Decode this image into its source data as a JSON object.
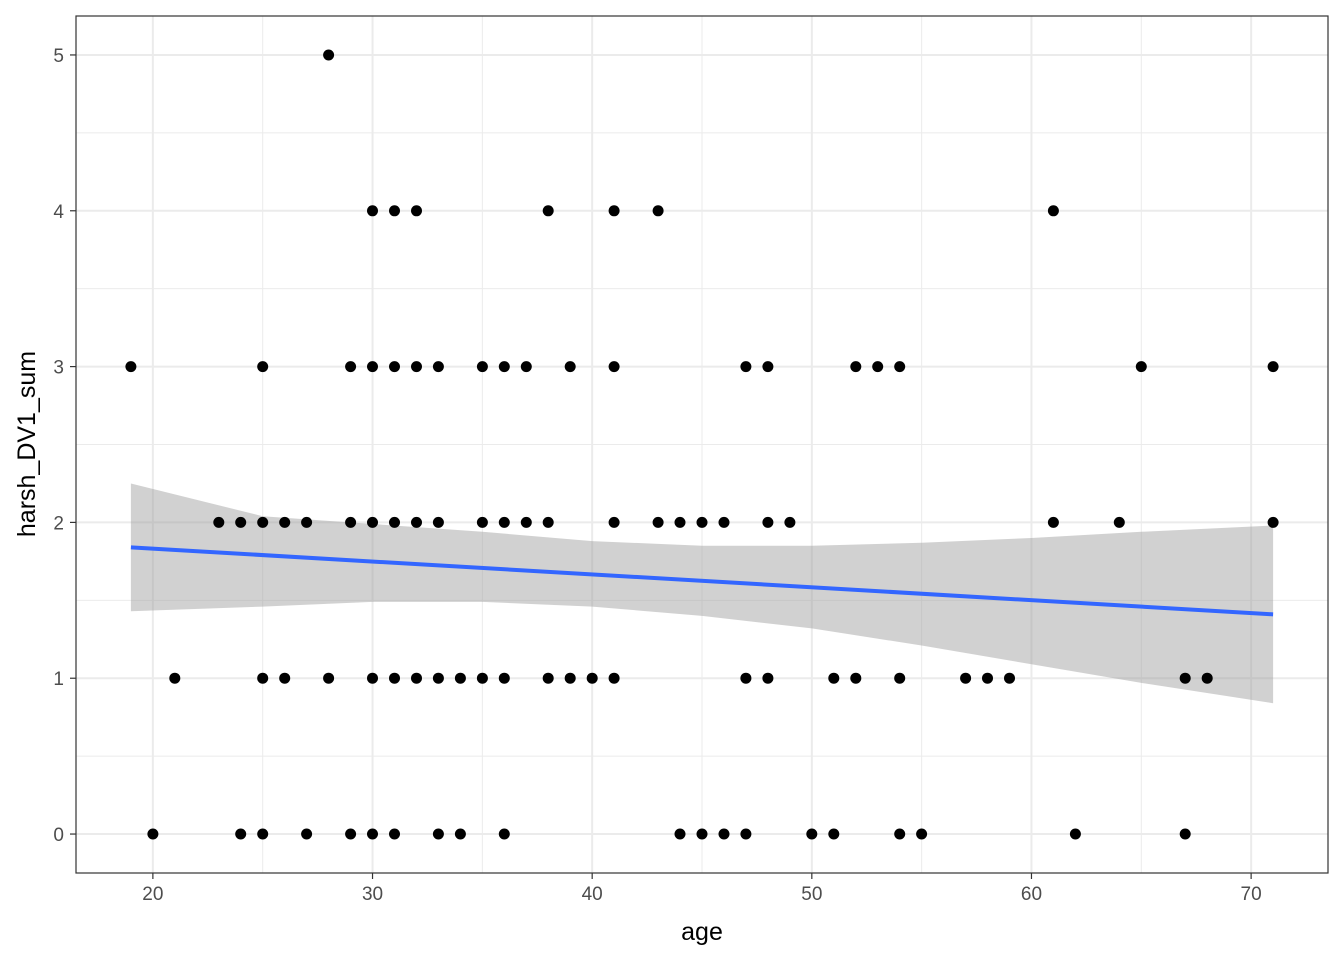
{
  "chart_data": {
    "type": "scatter",
    "xlabel": "age",
    "ylabel": "harsh_DV1_sum",
    "xlim": [
      16.5,
      73.5
    ],
    "ylim": [
      -0.25,
      5.25
    ],
    "x_ticks": [
      20,
      30,
      40,
      50,
      60,
      70
    ],
    "y_ticks": [
      0,
      1,
      2,
      3,
      4,
      5
    ],
    "x_tick_labels": [
      "20",
      "30",
      "40",
      "50",
      "60",
      "70"
    ],
    "y_tick_labels": [
      "0",
      "1",
      "2",
      "3",
      "4",
      "5"
    ],
    "grid": true,
    "colors": {
      "points": "#000000",
      "fit_line": "#3366ff",
      "confidence_band": "#999999",
      "grid": "#ebebeb",
      "panel_border": "#333333"
    },
    "points": [
      [
        28,
        5
      ],
      [
        30,
        4
      ],
      [
        31,
        4
      ],
      [
        32,
        4
      ],
      [
        38,
        4
      ],
      [
        41,
        4
      ],
      [
        43,
        4
      ],
      [
        61,
        4
      ],
      [
        19,
        3
      ],
      [
        25,
        3
      ],
      [
        29,
        3
      ],
      [
        30,
        3
      ],
      [
        31,
        3
      ],
      [
        32,
        3
      ],
      [
        33,
        3
      ],
      [
        35,
        3
      ],
      [
        36,
        3
      ],
      [
        37,
        3
      ],
      [
        39,
        3
      ],
      [
        41,
        3
      ],
      [
        47,
        3
      ],
      [
        48,
        3
      ],
      [
        52,
        3
      ],
      [
        53,
        3
      ],
      [
        54,
        3
      ],
      [
        65,
        3
      ],
      [
        71,
        3
      ],
      [
        23,
        2
      ],
      [
        24,
        2
      ],
      [
        25,
        2
      ],
      [
        26,
        2
      ],
      [
        27,
        2
      ],
      [
        29,
        2
      ],
      [
        30,
        2
      ],
      [
        31,
        2
      ],
      [
        32,
        2
      ],
      [
        33,
        2
      ],
      [
        35,
        2
      ],
      [
        36,
        2
      ],
      [
        37,
        2
      ],
      [
        38,
        2
      ],
      [
        41,
        2
      ],
      [
        43,
        2
      ],
      [
        44,
        2
      ],
      [
        45,
        2
      ],
      [
        46,
        2
      ],
      [
        48,
        2
      ],
      [
        49,
        2
      ],
      [
        61,
        2
      ],
      [
        64,
        2
      ],
      [
        71,
        2
      ],
      [
        21,
        1
      ],
      [
        25,
        1
      ],
      [
        26,
        1
      ],
      [
        28,
        1
      ],
      [
        30,
        1
      ],
      [
        31,
        1
      ],
      [
        32,
        1
      ],
      [
        33,
        1
      ],
      [
        34,
        1
      ],
      [
        35,
        1
      ],
      [
        36,
        1
      ],
      [
        38,
        1
      ],
      [
        39,
        1
      ],
      [
        40,
        1
      ],
      [
        41,
        1
      ],
      [
        47,
        1
      ],
      [
        48,
        1
      ],
      [
        51,
        1
      ],
      [
        52,
        1
      ],
      [
        54,
        1
      ],
      [
        57,
        1
      ],
      [
        58,
        1
      ],
      [
        59,
        1
      ],
      [
        67,
        1
      ],
      [
        68,
        1
      ],
      [
        20,
        0
      ],
      [
        24,
        0
      ],
      [
        25,
        0
      ],
      [
        27,
        0
      ],
      [
        29,
        0
      ],
      [
        30,
        0
      ],
      [
        31,
        0
      ],
      [
        33,
        0
      ],
      [
        34,
        0
      ],
      [
        36,
        0
      ],
      [
        44,
        0
      ],
      [
        45,
        0
      ],
      [
        46,
        0
      ],
      [
        47,
        0
      ],
      [
        50,
        0
      ],
      [
        51,
        0
      ],
      [
        54,
        0
      ],
      [
        55,
        0
      ],
      [
        62,
        0
      ],
      [
        67,
        0
      ]
    ],
    "fit_line": {
      "x": [
        19,
        71
      ],
      "y": [
        1.84,
        1.41
      ]
    },
    "confidence_band": {
      "x": [
        19,
        25,
        30,
        35,
        40,
        45,
        50,
        55,
        60,
        65,
        71
      ],
      "lower": [
        1.43,
        1.46,
        1.49,
        1.49,
        1.46,
        1.4,
        1.32,
        1.21,
        1.09,
        0.97,
        0.84
      ],
      "upper": [
        2.25,
        2.04,
        1.99,
        1.94,
        1.88,
        1.85,
        1.85,
        1.87,
        1.9,
        1.94,
        1.98
      ]
    }
  }
}
